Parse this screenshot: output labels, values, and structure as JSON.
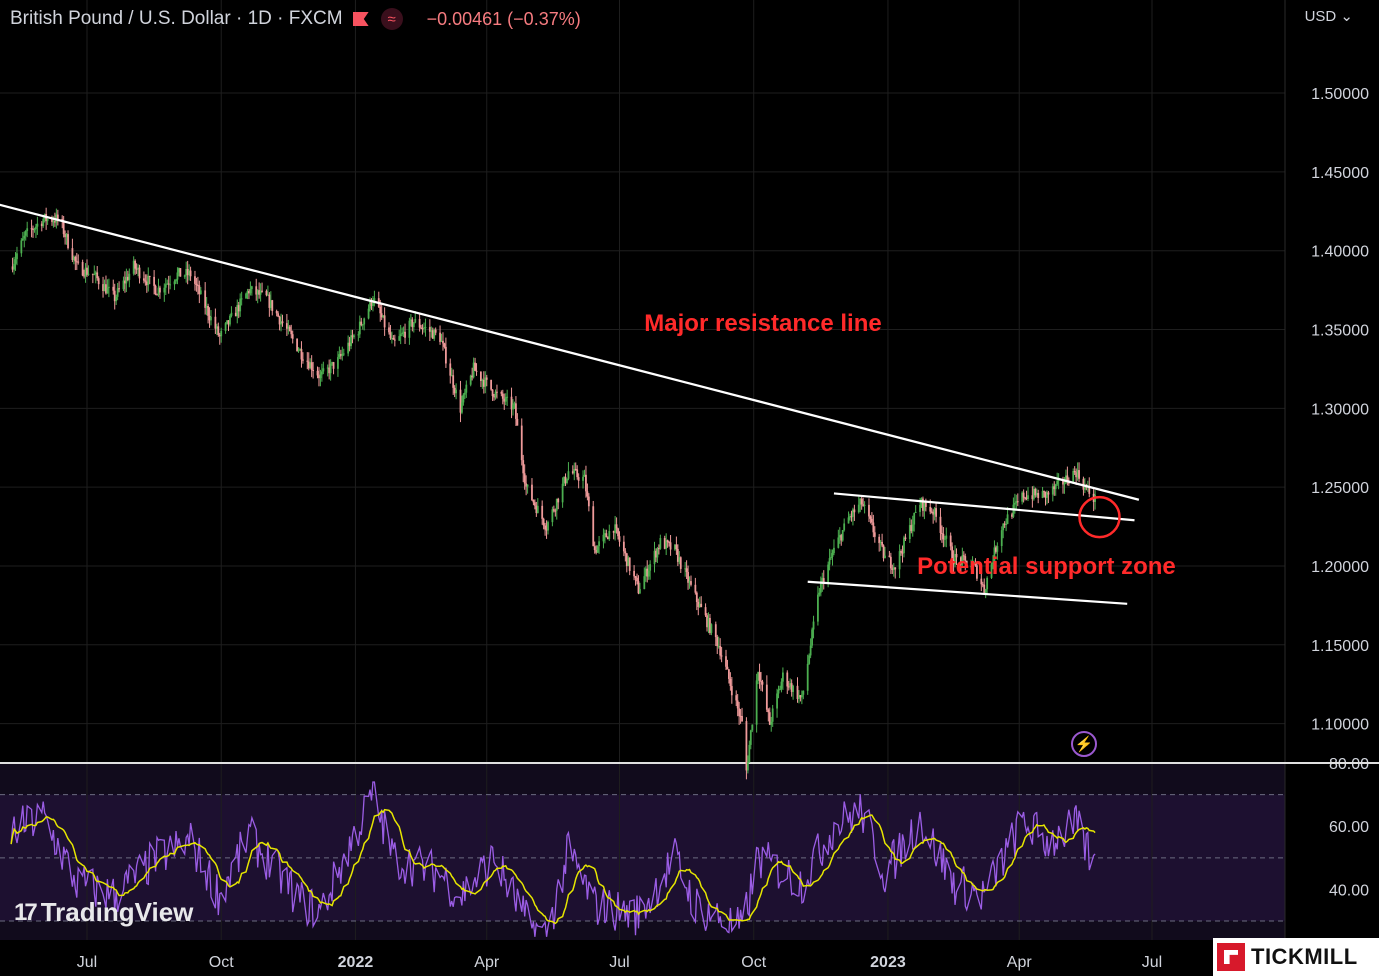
{
  "header": {
    "symbol_title": "British Pound / U.S. Dollar · 1D · FXCM",
    "change": "−0.00461 (−0.37%)",
    "currency": "USD",
    "flag_icon": "flag-icon",
    "indicator_icon": "wave-icon"
  },
  "branding": {
    "tradingview": "TradingView",
    "tickmill": "TICKMILL"
  },
  "chart_data": {
    "type": "candlestick",
    "x_ticks": [
      "Jul",
      "Oct",
      "2022",
      "Apr",
      "Jul",
      "Oct",
      "2023",
      "Apr",
      "Jul"
    ],
    "price_axis": {
      "ticks": [
        "1.10000",
        "1.15000",
        "1.20000",
        "1.25000",
        "1.30000",
        "1.35000",
        "1.40000",
        "1.45000",
        "1.50000"
      ],
      "range": [
        1.075,
        1.54
      ]
    },
    "price_series_approx": [
      [
        "2021-05-10",
        1.39
      ],
      [
        "2021-05-20",
        1.41
      ],
      [
        "2021-06-01",
        1.42
      ],
      [
        "2021-06-12",
        1.42
      ],
      [
        "2021-06-24",
        1.39
      ],
      [
        "2021-07-05",
        1.385
      ],
      [
        "2021-07-20",
        1.37
      ],
      [
        "2021-08-02",
        1.39
      ],
      [
        "2021-08-18",
        1.375
      ],
      [
        "2021-09-01",
        1.385
      ],
      [
        "2021-09-10",
        1.385
      ],
      [
        "2021-09-30",
        1.345
      ],
      [
        "2021-10-20",
        1.375
      ],
      [
        "2021-11-01",
        1.37
      ],
      [
        "2021-11-25",
        1.335
      ],
      [
        "2021-12-08",
        1.32
      ],
      [
        "2021-12-20",
        1.33
      ],
      [
        "2022-01-03",
        1.35
      ],
      [
        "2022-01-13",
        1.37
      ],
      [
        "2022-01-27",
        1.34
      ],
      [
        "2022-02-10",
        1.355
      ],
      [
        "2022-02-28",
        1.345
      ],
      [
        "2022-03-14",
        1.3
      ],
      [
        "2022-03-23",
        1.325
      ],
      [
        "2022-04-06",
        1.31
      ],
      [
        "2022-04-20",
        1.3
      ],
      [
        "2022-04-28",
        1.25
      ],
      [
        "2022-05-12",
        1.225
      ],
      [
        "2022-05-27",
        1.26
      ],
      [
        "2022-06-07",
        1.255
      ],
      [
        "2022-06-14",
        1.21
      ],
      [
        "2022-06-27",
        1.225
      ],
      [
        "2022-07-14",
        1.185
      ],
      [
        "2022-07-29",
        1.215
      ],
      [
        "2022-08-08",
        1.21
      ],
      [
        "2022-08-22",
        1.18
      ],
      [
        "2022-09-07",
        1.15
      ],
      [
        "2022-09-23",
        1.1
      ],
      [
        "2022-09-26",
        1.07
      ],
      [
        "2022-10-04",
        1.135
      ],
      [
        "2022-10-12",
        1.1
      ],
      [
        "2022-10-21",
        1.13
      ],
      [
        "2022-11-03",
        1.115
      ],
      [
        "2022-11-15",
        1.185
      ],
      [
        "2022-11-25",
        1.21
      ],
      [
        "2022-12-05",
        1.23
      ],
      [
        "2022-12-14",
        1.24
      ],
      [
        "2022-12-30",
        1.205
      ],
      [
        "2023-01-06",
        1.2
      ],
      [
        "2023-01-23",
        1.24
      ],
      [
        "2023-02-01",
        1.235
      ],
      [
        "2023-02-15",
        1.205
      ],
      [
        "2023-03-01",
        1.2
      ],
      [
        "2023-03-08",
        1.185
      ],
      [
        "2023-03-20",
        1.225
      ],
      [
        "2023-04-04",
        1.245
      ],
      [
        "2023-04-20",
        1.245
      ],
      [
        "2023-05-10",
        1.26
      ],
      [
        "2023-05-16",
        1.25
      ],
      [
        "2023-05-23",
        1.242
      ]
    ],
    "rsi_axis": {
      "ticks": [
        "40.00",
        "60.00",
        "80.00"
      ],
      "levels": [
        70,
        50,
        30
      ],
      "range": [
        24,
        80
      ]
    },
    "rsi_series_approx": [
      [
        "2021-05-10",
        58
      ],
      [
        "2021-06-01",
        63
      ],
      [
        "2021-06-24",
        42
      ],
      [
        "2021-07-20",
        38
      ],
      [
        "2021-08-18",
        50
      ],
      [
        "2021-09-10",
        55
      ],
      [
        "2021-09-30",
        38
      ],
      [
        "2021-10-20",
        57
      ],
      [
        "2021-11-25",
        36
      ],
      [
        "2021-12-08",
        33
      ],
      [
        "2022-01-13",
        70
      ],
      [
        "2022-01-27",
        50
      ],
      [
        "2022-02-28",
        45
      ],
      [
        "2022-03-14",
        38
      ],
      [
        "2022-04-06",
        50
      ],
      [
        "2022-04-28",
        30
      ],
      [
        "2022-05-12",
        25
      ],
      [
        "2022-05-27",
        52
      ],
      [
        "2022-06-14",
        35
      ],
      [
        "2022-07-14",
        32
      ],
      [
        "2022-08-08",
        50
      ],
      [
        "2022-08-22",
        35
      ],
      [
        "2022-09-23",
        27
      ],
      [
        "2022-10-04",
        50
      ],
      [
        "2022-11-03",
        42
      ],
      [
        "2022-11-25",
        60
      ],
      [
        "2022-12-14",
        65
      ],
      [
        "2022-12-30",
        45
      ],
      [
        "2023-01-23",
        62
      ],
      [
        "2023-02-15",
        42
      ],
      [
        "2023-03-08",
        38
      ],
      [
        "2023-04-04",
        62
      ],
      [
        "2023-04-20",
        55
      ],
      [
        "2023-05-10",
        60
      ],
      [
        "2023-05-23",
        47
      ]
    ],
    "trendlines": [
      {
        "name": "major-resistance",
        "from": [
          "2021-04-20",
          1.432
        ],
        "to": [
          "2023-06-22",
          1.242
        ]
      },
      {
        "name": "channel-top",
        "from": [
          "2022-11-25",
          1.246
        ],
        "to": [
          "2023-06-19",
          1.229
        ]
      },
      {
        "name": "channel-bottom",
        "from": [
          "2022-11-07",
          1.19
        ],
        "to": [
          "2023-06-14",
          1.176
        ]
      }
    ],
    "annotations": [
      {
        "text": "Major resistance line",
        "at": [
          "2022-07-18",
          1.354
        ],
        "color": "#ff2a2a"
      },
      {
        "text": "Potential support zone",
        "at": [
          "2023-01-21",
          1.2
        ],
        "color": "#ff2a2a"
      }
    ],
    "support_circle": {
      "at": [
        "2023-05-26",
        1.231
      ]
    },
    "colors": {
      "up": "#4caf50",
      "down": "#ef9a9a",
      "rsi": "#9b5de5",
      "rsi_ma": "#e6e600",
      "background": "#000000",
      "grid": "#1e1e1e"
    }
  }
}
